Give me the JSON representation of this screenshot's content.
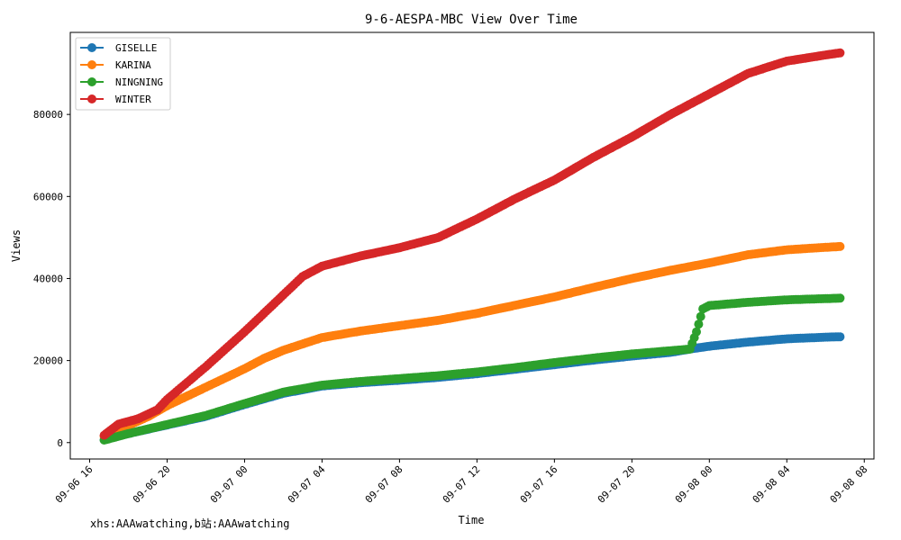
{
  "chart_data": {
    "type": "line",
    "title": "9-6-AESPA-MBC View Over Time",
    "xlabel": "Time",
    "ylabel": "Views",
    "x_start": "09-06 16:45",
    "x_ticks": [
      "09-06 16",
      "09-06 20",
      "09-07 00",
      "09-07 04",
      "09-07 08",
      "09-07 12",
      "09-07 16",
      "09-07 20",
      "09-08 00",
      "09-08 04",
      "09-08 08"
    ],
    "xlim": [
      "09-06 15:00",
      "09-08 08:30"
    ],
    "y_ticks": [
      "0",
      "20000",
      "40000",
      "60000",
      "80000"
    ],
    "ylim": [
      -4000,
      100000
    ],
    "grid": false,
    "legend_position": "top-left",
    "series": [
      {
        "name": "GISELLE",
        "color": "#1f77b4",
        "points": [
          [
            "09-06 16:45",
            700
          ],
          [
            "09-06 18:00",
            2200
          ],
          [
            "09-06 20:00",
            4300
          ],
          [
            "09-06 22:00",
            6400
          ],
          [
            "09-07 00:00",
            9300
          ],
          [
            "09-07 02:00",
            12000
          ],
          [
            "09-07 04:00",
            13800
          ],
          [
            "09-07 06:00",
            14600
          ],
          [
            "09-07 08:00",
            15200
          ],
          [
            "09-07 10:00",
            15900
          ],
          [
            "09-07 12:00",
            16800
          ],
          [
            "09-07 14:00",
            17900
          ],
          [
            "09-07 16:00",
            19000
          ],
          [
            "09-07 18:00",
            20100
          ],
          [
            "09-07 20:00",
            21100
          ],
          [
            "09-07 22:00",
            22000
          ],
          [
            "09-07 23:00",
            22800
          ],
          [
            "09-08 00:00",
            23500
          ],
          [
            "09-08 02:00",
            24500
          ],
          [
            "09-08 04:00",
            25300
          ],
          [
            "09-08 06:00",
            25700
          ],
          [
            "09-08 06:45",
            25800
          ]
        ]
      },
      {
        "name": "KARINA",
        "color": "#ff7f0e",
        "points": [
          [
            "09-06 16:45",
            1500
          ],
          [
            "09-06 18:00",
            4200
          ],
          [
            "09-06 19:00",
            6300
          ],
          [
            "09-06 20:00",
            9000
          ],
          [
            "09-06 22:00",
            13500
          ],
          [
            "09-07 00:00",
            18000
          ],
          [
            "09-07 01:00",
            20500
          ],
          [
            "09-07 02:00",
            22500
          ],
          [
            "09-07 04:00",
            25600
          ],
          [
            "09-07 06:00",
            27200
          ],
          [
            "09-07 08:00",
            28500
          ],
          [
            "09-07 10:00",
            29800
          ],
          [
            "09-07 12:00",
            31500
          ],
          [
            "09-07 14:00",
            33500
          ],
          [
            "09-07 16:00",
            35500
          ],
          [
            "09-07 18:00",
            37800
          ],
          [
            "09-07 20:00",
            40000
          ],
          [
            "09-07 22:00",
            42000
          ],
          [
            "09-08 00:00",
            43800
          ],
          [
            "09-08 02:00",
            45800
          ],
          [
            "09-08 04:00",
            47000
          ],
          [
            "09-08 06:00",
            47600
          ],
          [
            "09-08 06:45",
            47800
          ]
        ]
      },
      {
        "name": "NINGNING",
        "color": "#2ca02c",
        "points": [
          [
            "09-06 16:45",
            600
          ],
          [
            "09-06 18:00",
            2200
          ],
          [
            "09-06 20:00",
            4400
          ],
          [
            "09-06 22:00",
            6600
          ],
          [
            "09-07 00:00",
            9500
          ],
          [
            "09-07 02:00",
            12300
          ],
          [
            "09-07 04:00",
            14000
          ],
          [
            "09-07 06:00",
            14900
          ],
          [
            "09-07 08:00",
            15600
          ],
          [
            "09-07 10:00",
            16300
          ],
          [
            "09-07 12:00",
            17200
          ],
          [
            "09-07 14:00",
            18300
          ],
          [
            "09-07 16:00",
            19500
          ],
          [
            "09-07 18:00",
            20600
          ],
          [
            "09-07 20:00",
            21600
          ],
          [
            "09-07 22:00",
            22400
          ],
          [
            "09-07 23:00",
            22800
          ],
          [
            "09-07 23:20",
            27000
          ],
          [
            "09-07 23:40",
            32600
          ],
          [
            "09-08 00:00",
            33400
          ],
          [
            "09-08 02:00",
            34200
          ],
          [
            "09-08 04:00",
            34800
          ],
          [
            "09-08 06:00",
            35100
          ],
          [
            "09-08 06:45",
            35200
          ]
        ]
      },
      {
        "name": "WINTER",
        "color": "#d62728",
        "points": [
          [
            "09-06 16:45",
            1800
          ],
          [
            "09-06 17:30",
            4500
          ],
          [
            "09-06 18:30",
            5800
          ],
          [
            "09-06 19:30",
            8000
          ],
          [
            "09-06 20:00",
            10500
          ],
          [
            "09-06 22:00",
            18500
          ],
          [
            "09-07 00:00",
            27000
          ],
          [
            "09-07 01:00",
            31500
          ],
          [
            "09-07 02:00",
            36000
          ],
          [
            "09-07 03:00",
            40500
          ],
          [
            "09-07 04:00",
            43000
          ],
          [
            "09-07 06:00",
            45500
          ],
          [
            "09-07 08:00",
            47500
          ],
          [
            "09-07 10:00",
            50000
          ],
          [
            "09-07 12:00",
            54500
          ],
          [
            "09-07 14:00",
            59500
          ],
          [
            "09-07 16:00",
            64000
          ],
          [
            "09-07 18:00",
            69500
          ],
          [
            "09-07 20:00",
            74500
          ],
          [
            "09-07 22:00",
            80000
          ],
          [
            "09-08 00:00",
            85000
          ],
          [
            "09-08 02:00",
            90000
          ],
          [
            "09-08 04:00",
            93000
          ],
          [
            "09-08 06:00",
            94500
          ],
          [
            "09-08 06:45",
            95000
          ]
        ]
      }
    ]
  },
  "watermark": "xhs:AAAwatching,b站:AAAwatching"
}
